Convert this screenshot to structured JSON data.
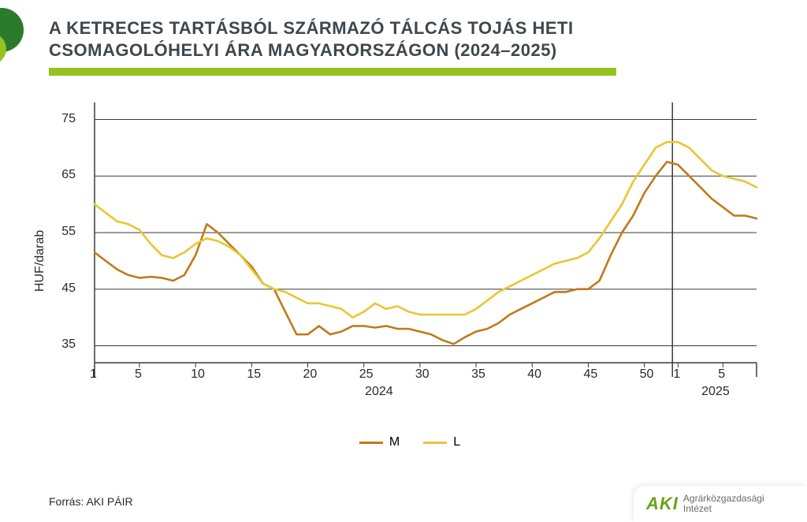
{
  "title_line1": "A KETRECES TARTÁSBÓL SZÁRMAZÓ TÁLCÁS TOJÁS HETI",
  "title_line2": "CSOMAGOLÓHELYI ÁRA MAGYARORSZÁGON (2024–2025)",
  "ylabel": "HUF/darab",
  "source": "Forrás: AKI PÁIR",
  "logo": {
    "text": "AKI",
    "sub1": "Agrárközgazdasági",
    "sub2": "Intézet"
  },
  "styling": {
    "title_color": "#3f474d",
    "accent_green": "#97c11f",
    "circle_dark": "#2b7a2b",
    "circle_light": "#8dbb3a",
    "background": "#ffffff",
    "grid_color": "#3a3a3a",
    "series_M_color": "#c07a1a",
    "series_L_color": "#e6c733",
    "line_width": 2.6,
    "title_fontsize": 22,
    "label_fontsize": 16
  },
  "chart": {
    "type": "line",
    "ylim": [
      32,
      78
    ],
    "yticks": [
      35,
      45,
      55,
      65,
      75
    ],
    "x_segments": [
      {
        "year": "2024",
        "start": 1,
        "end": 52,
        "ticks": [
          1,
          5,
          10,
          15,
          20,
          25,
          30,
          35,
          40,
          45,
          50
        ]
      },
      {
        "year": "2025",
        "start": 1,
        "end": 8,
        "ticks": [
          1,
          5
        ]
      }
    ],
    "series": [
      {
        "name": "M",
        "color": "#c07a1a",
        "y": [
          51.5,
          50,
          48.5,
          47.5,
          47,
          47.2,
          47,
          46.5,
          47.5,
          51,
          56.5,
          55,
          53,
          51,
          49,
          46,
          45,
          41,
          37,
          37,
          38.5,
          37,
          37.5,
          38.5,
          38.5,
          38.2,
          38.5,
          38,
          38,
          37.5,
          37,
          36,
          35.3,
          36.5,
          37.5,
          38,
          39,
          40.5,
          41.5,
          42.5,
          43.5,
          44.5,
          44.5,
          45,
          45,
          46.5,
          51,
          55,
          58,
          62,
          65,
          67.5,
          67,
          65,
          63,
          61,
          59.5,
          58,
          58,
          57.5
        ]
      },
      {
        "name": "L",
        "color": "#e6c733",
        "y": [
          60,
          58.5,
          57,
          56.5,
          55.5,
          53,
          51,
          50.5,
          51.5,
          53,
          54,
          53.5,
          52.5,
          51,
          48.5,
          46,
          45,
          44.5,
          43.5,
          42.5,
          42.5,
          42,
          41.5,
          40,
          41,
          42.5,
          41.5,
          42,
          41,
          40.5,
          40.5,
          40.5,
          40.5,
          40.5,
          41.5,
          43,
          44.5,
          45.5,
          46.5,
          47.5,
          48.5,
          49.5,
          50,
          50.5,
          51.5,
          54,
          57,
          60,
          64,
          67,
          70,
          71,
          71,
          70,
          68,
          66,
          65,
          64.5,
          64,
          63
        ]
      }
    ],
    "legend": [
      "M",
      "L"
    ]
  }
}
